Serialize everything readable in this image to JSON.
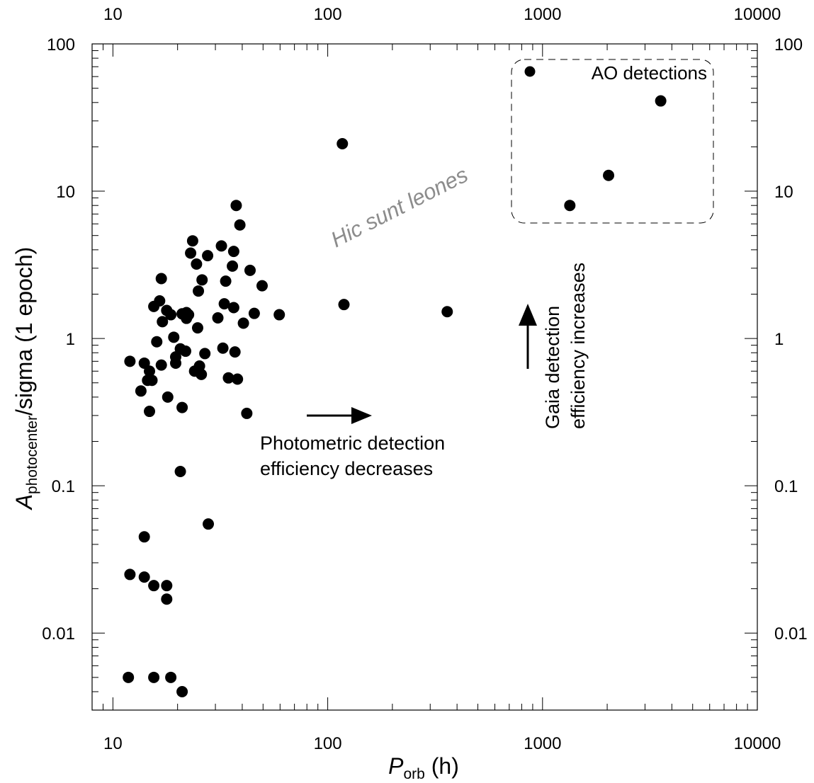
{
  "chart_data": {
    "type": "scatter",
    "title": "",
    "xlabel_main": "P",
    "xlabel_sub": "orb",
    "xlabel_unit": " (h)",
    "ylabel_main": "A",
    "ylabel_sub": "photocenter",
    "ylabel_rest": "/sigma (1 epoch)",
    "x_scale": "log",
    "y_scale": "log",
    "xlim": [
      8,
      10000
    ],
    "ylim": [
      0.003,
      100
    ],
    "x_ticks": [
      10,
      100,
      1000,
      10000
    ],
    "x_tick_labels": [
      "10",
      "100",
      "1000",
      "10000"
    ],
    "y_ticks": [
      0.01,
      0.1,
      1,
      10,
      100
    ],
    "y_tick_labels": [
      "0.01",
      "0.1",
      "1",
      "10",
      "100"
    ],
    "grid": false,
    "legend": {
      "position": "top-right",
      "entries": [
        "AO detections"
      ]
    },
    "annotations": {
      "hic_sunt": "Hic sunt leones",
      "photometric_line1": "Photometric detection",
      "photometric_line2": "efficiency decreases",
      "gaia_line1": "Gaia detection",
      "gaia_line2": "efficiency increases"
    },
    "series": [
      {
        "marker": "filled-circle",
        "color": "#000000",
        "points": [
          [
            12,
            0.7
          ],
          [
            13.5,
            0.44
          ],
          [
            14,
            0.68
          ],
          [
            14.5,
            0.52
          ],
          [
            14.8,
            0.32
          ],
          [
            14.8,
            0.6
          ],
          [
            15.2,
            0.52
          ],
          [
            15.5,
            1.65
          ],
          [
            16,
            0.95
          ],
          [
            16.5,
            1.8
          ],
          [
            16.8,
            2.55
          ],
          [
            16.8,
            0.66
          ],
          [
            17,
            1.3
          ],
          [
            17.8,
            1.55
          ],
          [
            18,
            0.4
          ],
          [
            18.6,
            1.45
          ],
          [
            19.2,
            1.02
          ],
          [
            19.6,
            0.75
          ],
          [
            19.6,
            0.68
          ],
          [
            20.6,
            0.85
          ],
          [
            21,
            0.34
          ],
          [
            21,
            1.47
          ],
          [
            21.8,
            0.82
          ],
          [
            22,
            1.5
          ],
          [
            22,
            1.37
          ],
          [
            22.5,
            1.45
          ],
          [
            23,
            3.8
          ],
          [
            23.5,
            4.6
          ],
          [
            24,
            0.6
          ],
          [
            24.5,
            3.2
          ],
          [
            24.8,
            1.18
          ],
          [
            25,
            2.1
          ],
          [
            25.3,
            0.65
          ],
          [
            25.8,
            0.57
          ],
          [
            26,
            2.5
          ],
          [
            26.8,
            0.79
          ],
          [
            27.6,
            3.65
          ],
          [
            30.8,
            1.38
          ],
          [
            32,
            4.25
          ],
          [
            32.5,
            0.86
          ],
          [
            33,
            1.72
          ],
          [
            33.5,
            2.45
          ],
          [
            34.5,
            0.54
          ],
          [
            36,
            3.1
          ],
          [
            36.5,
            1.62
          ],
          [
            36.5,
            3.9
          ],
          [
            37,
            0.81
          ],
          [
            37.5,
            8.0
          ],
          [
            38,
            0.53
          ],
          [
            39,
            5.9
          ],
          [
            40.5,
            1.27
          ],
          [
            42,
            0.31
          ],
          [
            43.5,
            2.9
          ],
          [
            45.5,
            1.48
          ],
          [
            49.5,
            2.28
          ],
          [
            59.5,
            1.45
          ],
          [
            117,
            21.0
          ],
          [
            119,
            1.7
          ],
          [
            360,
            1.52
          ],
          [
            20.6,
            0.125
          ],
          [
            27.8,
            0.055
          ],
          [
            14,
            0.045
          ],
          [
            12,
            0.025
          ],
          [
            14,
            0.024
          ],
          [
            15.5,
            0.021
          ],
          [
            17.8,
            0.021
          ],
          [
            17.8,
            0.017
          ],
          [
            11.8,
            0.005
          ],
          [
            15.5,
            0.005
          ],
          [
            18.6,
            0.005
          ],
          [
            21,
            0.004
          ]
        ]
      },
      {
        "name": "AO detections",
        "marker": "filled-circle",
        "color": "#000000",
        "points": [
          [
            1340,
            8.0
          ],
          [
            2030,
            12.8
          ],
          [
            3550,
            41.0
          ]
        ]
      }
    ]
  }
}
